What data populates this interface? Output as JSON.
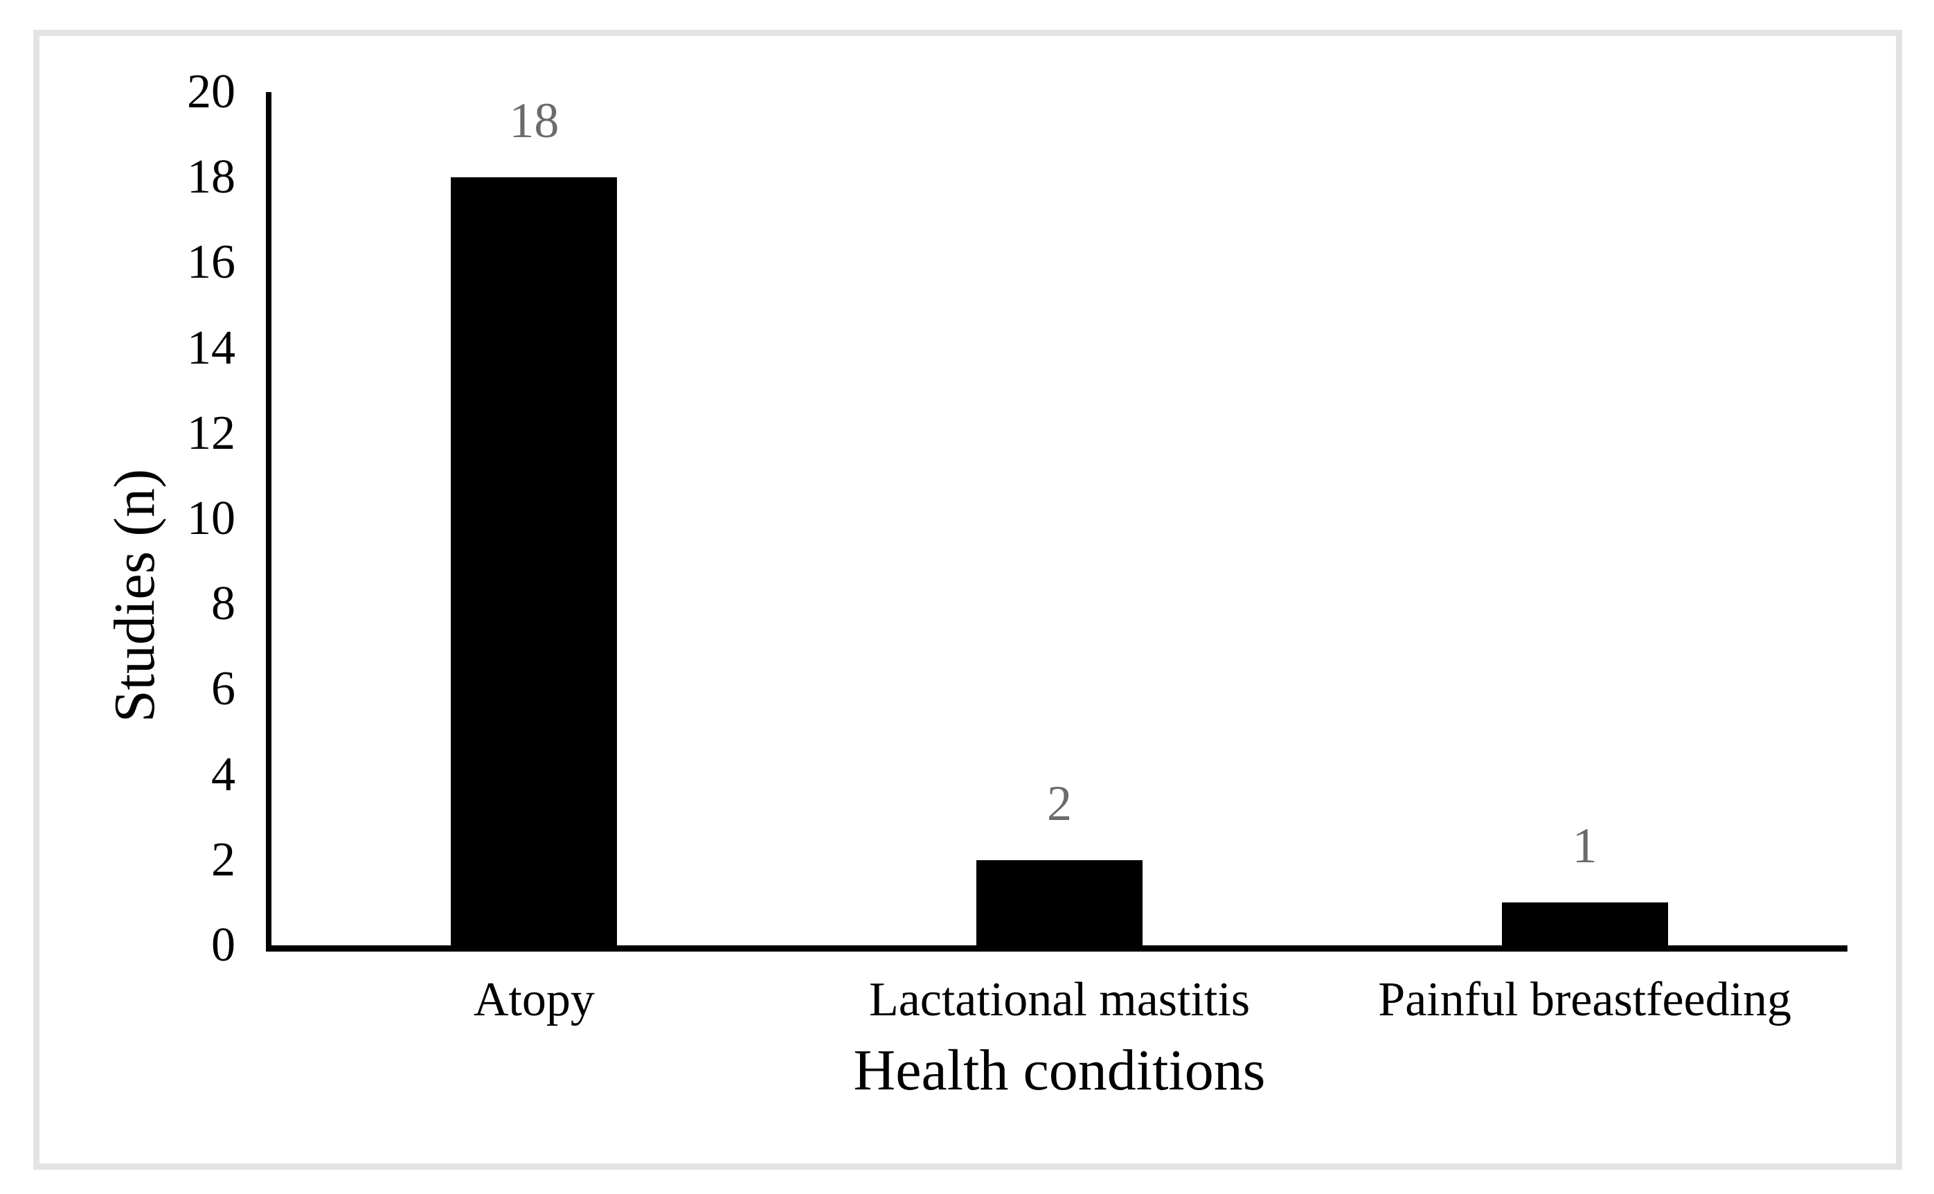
{
  "chart_data": {
    "type": "bar",
    "title": "",
    "categories": [
      "Atopy",
      "Lactational mastitis",
      "Painful breastfeeding"
    ],
    "values": [
      18,
      2,
      1
    ],
    "data_labels": [
      "18",
      "2",
      "1"
    ],
    "xlabel": "Health conditions",
    "ylabel": "Studies (n)",
    "ylim": [
      0,
      20
    ],
    "yticks": [
      0,
      2,
      4,
      6,
      8,
      10,
      12,
      14,
      16,
      18,
      20
    ],
    "grid": "off",
    "legend": "none",
    "bar_color": "#000000",
    "axis_color": "#000000",
    "data_label_color": "#6b6b6b",
    "frame_border_color": "#e3e3e3",
    "background_color": "#ffffff"
  }
}
